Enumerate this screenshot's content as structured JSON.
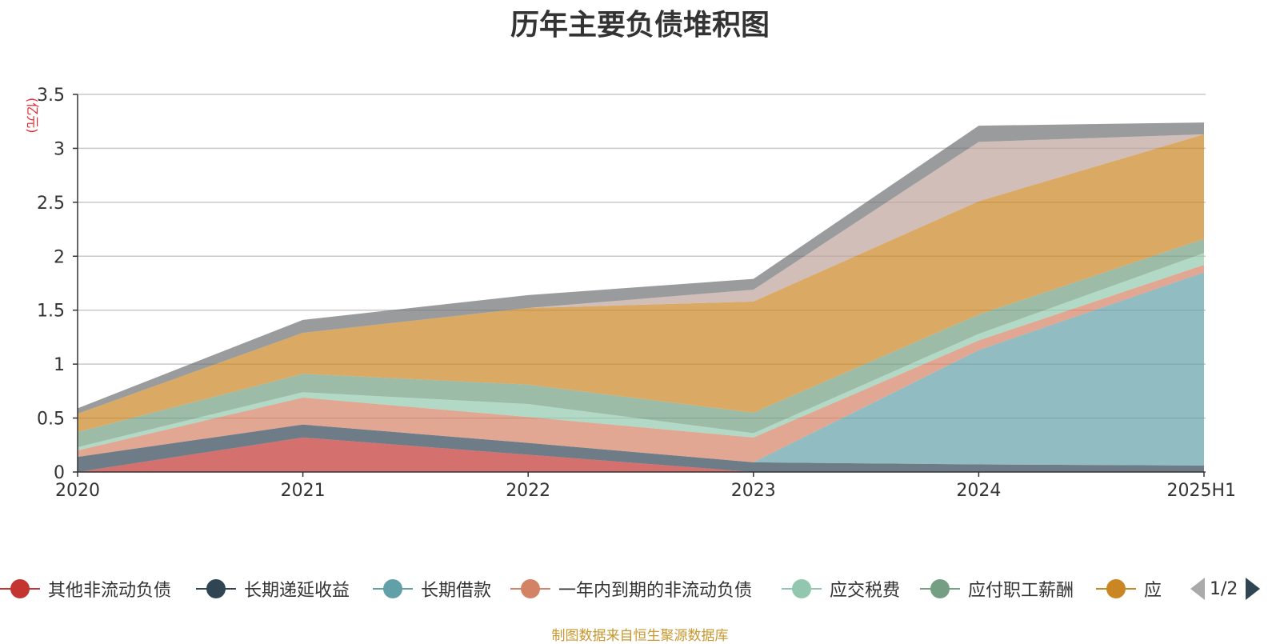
{
  "title": "历年主要负债堆积图",
  "unit_label": "(亿元)",
  "source_note": "制图数据来自恒生聚源数据库",
  "pager": {
    "text": "1/2"
  },
  "legend": [
    {
      "name": "其他非流动负债",
      "color": "#c23531"
    },
    {
      "name": "长期递延收益",
      "color": "#2f4554"
    },
    {
      "name": "长期借款",
      "color": "#61a0a8"
    },
    {
      "name": "一年内到期的非流动负债",
      "color": "#d48265"
    },
    {
      "name": "应交税费",
      "color": "#91c7ae"
    },
    {
      "name": "应付职工薪酬",
      "color": "#749f83"
    },
    {
      "name": "应",
      "color": "#ca8622"
    }
  ],
  "chart_data": {
    "type": "area",
    "stacked": true,
    "title": "历年主要负债堆积图",
    "ylabel": "(亿元)",
    "categories": [
      "2020",
      "2021",
      "2022",
      "2023",
      "2024",
      "2025H1"
    ],
    "ylim": [
      0,
      3.5
    ],
    "yticks": [
      0,
      0.5,
      1,
      1.5,
      2,
      2.5,
      3,
      3.5
    ],
    "grid": true,
    "legend_position": "bottom",
    "series": [
      {
        "name": "其他非流动负债",
        "color": "#c23531",
        "values": [
          0.0,
          0.32,
          0.16,
          0.0,
          0.0,
          0.0
        ]
      },
      {
        "name": "长期递延收益",
        "color": "#2f4554",
        "values": [
          0.14,
          0.12,
          0.11,
          0.09,
          0.07,
          0.06
        ]
      },
      {
        "name": "长期借款",
        "color": "#61a0a8",
        "values": [
          0.0,
          0.0,
          0.0,
          0.0,
          1.06,
          1.79
        ]
      },
      {
        "name": "一年内到期的非流动负债",
        "color": "#d48265",
        "values": [
          0.06,
          0.25,
          0.24,
          0.23,
          0.09,
          0.07
        ]
      },
      {
        "name": "应交税费",
        "color": "#91c7ae",
        "values": [
          0.03,
          0.05,
          0.12,
          0.04,
          0.06,
          0.11
        ]
      },
      {
        "name": "应付职工薪酬",
        "color": "#749f83",
        "values": [
          0.14,
          0.17,
          0.18,
          0.19,
          0.18,
          0.13
        ]
      },
      {
        "name": "应",
        "color": "#ca8622",
        "values": [
          0.17,
          0.38,
          0.71,
          1.03,
          1.05,
          0.97
        ]
      },
      {
        "name": "",
        "color": "#bda29a",
        "values": [
          0.0,
          0.0,
          0.0,
          0.11,
          0.55,
          0.0
        ]
      },
      {
        "name": "",
        "color": "#6e7074",
        "values": [
          0.05,
          0.12,
          0.12,
          0.1,
          0.15,
          0.11
        ]
      }
    ]
  }
}
